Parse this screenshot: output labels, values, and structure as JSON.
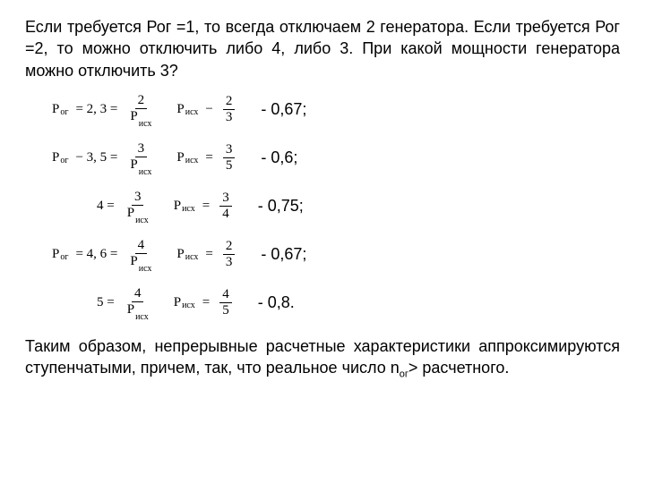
{
  "intro": "Если требуется  Рог =1, то всегда отключаем 2 генератора. Если требуется Рог =2, то можно отключить либо 4, либо 3. При какой мощности генератора можно отключить 3?",
  "rows": [
    {
      "lead_var": "P",
      "lead_sub": "ог",
      "lead_eq": "= 2,  3 =",
      "f1_num": "2",
      "f1_den_var": "P",
      "f1_den_sub": "исх",
      "mid_var": "P",
      "mid_sub": "исх",
      "mid_eq": "−",
      "f2_num": "2",
      "f2_den": "3",
      "result": "- 0,67;",
      "indent": "eqblock"
    },
    {
      "lead_var": "P",
      "lead_sub": "ог",
      "lead_eq": "− 3,  5 =",
      "f1_num": "3",
      "f1_den_var": "P",
      "f1_den_sub": "исх",
      "mid_var": "P",
      "mid_sub": "исх",
      "mid_eq": "=",
      "f2_num": "3",
      "f2_den": "5",
      "result": "- 0,6;",
      "indent": "eqblock"
    },
    {
      "lead_var": "",
      "lead_sub": "",
      "lead_eq": "4 =",
      "f1_num": "3",
      "f1_den_var": "P",
      "f1_den_sub": "исх",
      "mid_var": "P",
      "mid_sub": "исх",
      "mid_eq": "=",
      "f2_num": "3",
      "f2_den": "4",
      "result": "- 0,75;",
      "indent": "eqblock2"
    },
    {
      "lead_var": "P",
      "lead_sub": "ог",
      "lead_eq": "= 4,  6 =",
      "f1_num": "4",
      "f1_den_var": "P",
      "f1_den_sub": "исх",
      "mid_var": "P",
      "mid_sub": "исх",
      "mid_eq": "=",
      "f2_num": "2",
      "f2_den": "3",
      "result": "- 0,67;",
      "indent": "eqblock"
    },
    {
      "lead_var": "",
      "lead_sub": "",
      "lead_eq": "5 =",
      "f1_num": "4",
      "f1_den_var": "P",
      "f1_den_sub": "исх",
      "mid_var": "P",
      "mid_sub": "исх",
      "mid_eq": "=",
      "f2_num": "4",
      "f2_den": "5",
      "result": "- 0,8.",
      "indent": "eqblock2"
    }
  ],
  "conclusion_pre": "Таким образом, непрерывные расчетные характеристики аппроксимируются ступенчатыми, причем, так, что реальное число n",
  "conclusion_sub": "ог",
  "conclusion_post": "> расчетного."
}
